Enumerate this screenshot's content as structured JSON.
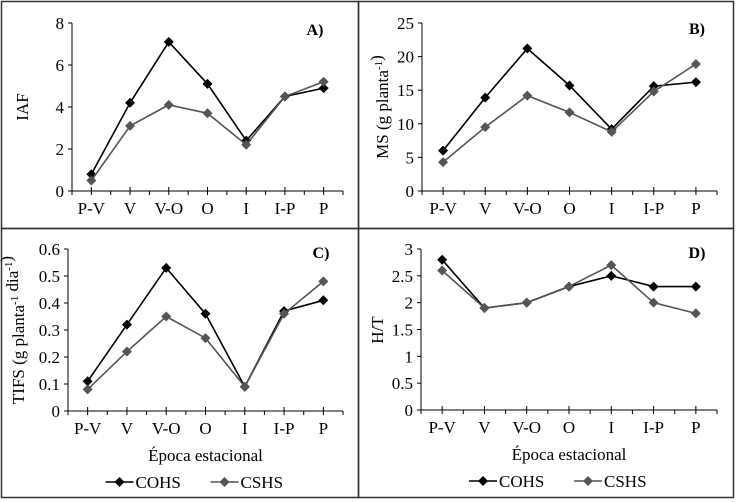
{
  "colors": {
    "COHS": "#000000",
    "CSHS": "#555555",
    "axis": "#000000",
    "border": "#333333"
  },
  "chart_data": [
    {
      "type": "line",
      "panel_label": "A)",
      "ylabel": "IAF",
      "xlabel": "",
      "ylim": [
        0,
        8
      ],
      "yticks": [
        "0",
        "2",
        "4",
        "6",
        "8"
      ],
      "categories": [
        "P-V",
        "V",
        "V-O",
        "O",
        "I",
        "I-P",
        "P"
      ],
      "series": [
        {
          "name": "COHS",
          "values": [
            0.8,
            4.2,
            7.1,
            5.1,
            2.4,
            4.5,
            4.9
          ]
        },
        {
          "name": "CSHS",
          "values": [
            0.5,
            3.1,
            4.1,
            3.7,
            2.2,
            4.5,
            5.2
          ]
        }
      ],
      "legend": false
    },
    {
      "type": "line",
      "panel_label": "B)",
      "ylabel": "MS (g planta",
      "ylabel_sup": "-1",
      "ylabel_end": ")",
      "xlabel": "",
      "ylim": [
        0,
        25
      ],
      "yticks": [
        "0",
        "5",
        "10",
        "15",
        "20",
        "25"
      ],
      "categories": [
        "P-V",
        "V",
        "V-O",
        "O",
        "I",
        "I-P",
        "P"
      ],
      "series": [
        {
          "name": "COHS",
          "values": [
            6.0,
            13.9,
            21.2,
            15.7,
            9.2,
            15.6,
            16.2
          ]
        },
        {
          "name": "CSHS",
          "values": [
            4.3,
            9.5,
            14.2,
            11.7,
            8.8,
            14.8,
            18.9
          ]
        }
      ],
      "legend": false
    },
    {
      "type": "line",
      "panel_label": "C)",
      "ylabel": "TIFS (g planta",
      "ylabel_sup": "-1",
      "ylabel_mid": " dia",
      "ylabel_sup2": "-1",
      "ylabel_end": ")",
      "xlabel": "Época estacional",
      "ylim": [
        0,
        0.6
      ],
      "yticks": [
        "0",
        "0.1",
        "0.2",
        "0.3",
        "0.4",
        "0.5",
        "0.6"
      ],
      "categories": [
        "P-V",
        "V",
        "V-O",
        "O",
        "I",
        "I-P",
        "P"
      ],
      "series": [
        {
          "name": "COHS",
          "values": [
            0.11,
            0.32,
            0.53,
            0.36,
            0.09,
            0.37,
            0.41
          ]
        },
        {
          "name": "CSHS",
          "values": [
            0.08,
            0.22,
            0.35,
            0.27,
            0.09,
            0.36,
            0.48
          ]
        }
      ],
      "legend": "bottom"
    },
    {
      "type": "line",
      "panel_label": "D)",
      "ylabel": "H/T",
      "xlabel": "Época estacional",
      "ylim": [
        0,
        3
      ],
      "yticks": [
        "0",
        "0.5",
        "1",
        "1.5",
        "2",
        "2.5",
        "3"
      ],
      "categories": [
        "P-V",
        "V",
        "V-O",
        "O",
        "I",
        "I-P",
        "P"
      ],
      "series": [
        {
          "name": "COHS",
          "values": [
            2.8,
            1.9,
            2.0,
            2.3,
            2.5,
            2.3,
            2.3
          ]
        },
        {
          "name": "CSHS",
          "values": [
            2.6,
            1.9,
            2.0,
            2.3,
            2.7,
            2.0,
            1.8
          ]
        }
      ],
      "legend": "bottom"
    }
  ]
}
